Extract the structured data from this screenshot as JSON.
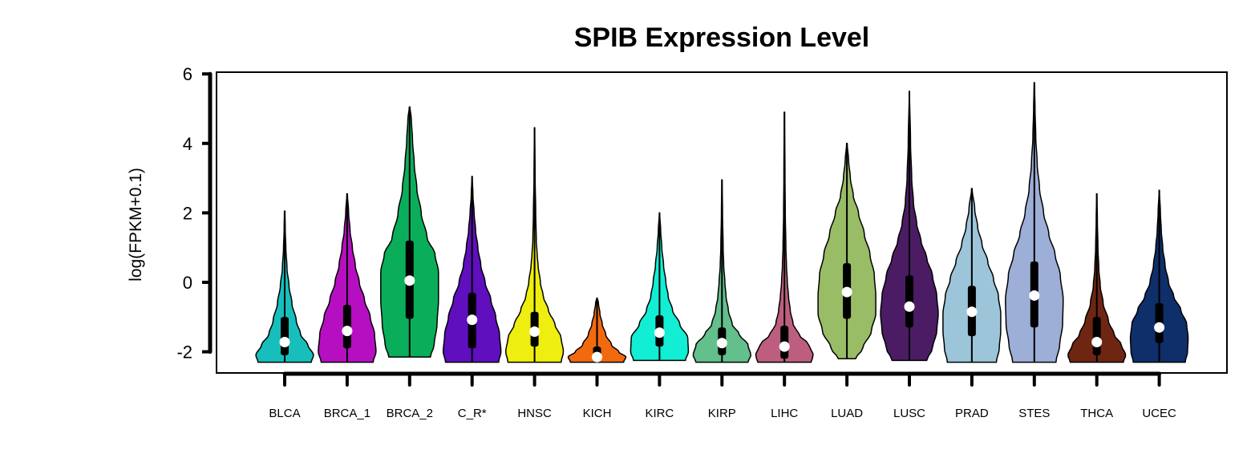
{
  "chart_data": {
    "type": "violin",
    "title": "SPIB Expression Level",
    "ylabel": "log(FPKM+0.1)",
    "xlabel": "",
    "ylim": [
      -2.6,
      6.1
    ],
    "yticks": [
      -2,
      0,
      2,
      4,
      6
    ],
    "ytick_labels": [
      "-2",
      "0",
      "2",
      "4",
      "6"
    ],
    "grid": false,
    "legend": "none",
    "categories": [
      "BLCA",
      "BRCA_1",
      "BRCA_2",
      "C_R*",
      "HNSC",
      "KICH",
      "KIRC",
      "KIRP",
      "LIHC",
      "LUAD",
      "LUSC",
      "PRAD",
      "STES",
      "THCA",
      "UCEC"
    ],
    "series": [
      {
        "category": "BLCA",
        "color": "#17BEBB",
        "min": -2.3,
        "q1": -2.1,
        "median": -1.72,
        "q3": -1.0,
        "max": 2.05,
        "density": [
          [
            -2.3,
            0.92
          ],
          [
            -2.1,
            1.0
          ],
          [
            -1.8,
            0.8
          ],
          [
            -1.5,
            0.55
          ],
          [
            -1.1,
            0.4
          ],
          [
            -0.6,
            0.25
          ],
          [
            -0.1,
            0.15
          ],
          [
            0.4,
            0.08
          ],
          [
            1.0,
            0.04
          ],
          [
            1.5,
            0.02
          ],
          [
            2.05,
            0.01
          ]
        ]
      },
      {
        "category": "BRCA_1",
        "color": "#B60FC1",
        "min": -2.3,
        "q1": -1.9,
        "median": -1.4,
        "q3": -0.65,
        "max": 2.55,
        "density": [
          [
            -2.3,
            0.9
          ],
          [
            -2.0,
            1.0
          ],
          [
            -1.5,
            0.95
          ],
          [
            -1.0,
            0.8
          ],
          [
            -0.5,
            0.6
          ],
          [
            0.0,
            0.42
          ],
          [
            0.5,
            0.28
          ],
          [
            1.0,
            0.18
          ],
          [
            1.5,
            0.1
          ],
          [
            2.0,
            0.05
          ],
          [
            2.55,
            0.01
          ]
        ]
      },
      {
        "category": "BRCA_2",
        "color": "#0AAE5A",
        "min": -2.15,
        "q1": -1.05,
        "median": 0.05,
        "q3": 1.2,
        "max": 5.05,
        "density": [
          [
            -2.15,
            0.72
          ],
          [
            -1.8,
            0.85
          ],
          [
            -1.2,
            0.95
          ],
          [
            -0.5,
            1.0
          ],
          [
            0.3,
            1.0
          ],
          [
            0.8,
            0.88
          ],
          [
            1.3,
            0.6
          ],
          [
            2.0,
            0.4
          ],
          [
            2.7,
            0.25
          ],
          [
            3.4,
            0.16
          ],
          [
            4.1,
            0.1
          ],
          [
            4.7,
            0.06
          ],
          [
            5.05,
            0.01
          ]
        ]
      },
      {
        "category": "C_R*",
        "color": "#5F0FBD",
        "min": -2.3,
        "q1": -1.9,
        "median": -1.08,
        "q3": -0.3,
        "max": 3.05,
        "density": [
          [
            -2.3,
            0.92
          ],
          [
            -2.0,
            1.0
          ],
          [
            -1.5,
            0.95
          ],
          [
            -1.0,
            0.82
          ],
          [
            -0.5,
            0.65
          ],
          [
            0.0,
            0.45
          ],
          [
            0.5,
            0.3
          ],
          [
            1.0,
            0.2
          ],
          [
            1.5,
            0.12
          ],
          [
            2.0,
            0.07
          ],
          [
            2.5,
            0.03
          ],
          [
            3.05,
            0.005
          ]
        ]
      },
      {
        "category": "HNSC",
        "color": "#EEEE10",
        "min": -2.3,
        "q1": -1.85,
        "median": -1.42,
        "q3": -0.85,
        "max": 4.45,
        "density": [
          [
            -2.3,
            0.92
          ],
          [
            -2.0,
            1.0
          ],
          [
            -1.6,
            0.92
          ],
          [
            -1.2,
            0.7
          ],
          [
            -0.8,
            0.48
          ],
          [
            -0.4,
            0.3
          ],
          [
            0.0,
            0.2
          ],
          [
            0.5,
            0.12
          ],
          [
            0.8,
            0.09
          ],
          [
            1.2,
            0.06
          ],
          [
            2.0,
            0.04
          ],
          [
            3.0,
            0.02
          ],
          [
            4.45,
            0.005
          ]
        ]
      },
      {
        "category": "KICH",
        "color": "#F26A0F",
        "min": -2.3,
        "q1": -2.25,
        "median": -2.15,
        "q3": -1.85,
        "max": -0.45,
        "density": [
          [
            -2.3,
            0.92
          ],
          [
            -2.15,
            1.0
          ],
          [
            -2.0,
            0.75
          ],
          [
            -1.8,
            0.5
          ],
          [
            -1.5,
            0.3
          ],
          [
            -1.2,
            0.18
          ],
          [
            -0.9,
            0.1
          ],
          [
            -0.6,
            0.05
          ],
          [
            -0.45,
            0.01
          ]
        ]
      },
      {
        "category": "KIRC",
        "color": "#12EED4",
        "min": -2.25,
        "q1": -1.85,
        "median": -1.45,
        "q3": -0.95,
        "max": 2.0,
        "density": [
          [
            -2.25,
            0.9
          ],
          [
            -2.0,
            1.0
          ],
          [
            -1.6,
            0.98
          ],
          [
            -1.2,
            0.7
          ],
          [
            -0.8,
            0.45
          ],
          [
            -0.4,
            0.3
          ],
          [
            0.0,
            0.22
          ],
          [
            0.5,
            0.14
          ],
          [
            1.0,
            0.08
          ],
          [
            1.5,
            0.04
          ],
          [
            2.0,
            0.005
          ]
        ]
      },
      {
        "category": "KIRP",
        "color": "#63BF8B",
        "min": -2.3,
        "q1": -2.1,
        "median": -1.75,
        "q3": -1.3,
        "max": 2.95,
        "density": [
          [
            -2.3,
            0.9
          ],
          [
            -2.1,
            1.0
          ],
          [
            -1.8,
            0.9
          ],
          [
            -1.5,
            0.6
          ],
          [
            -1.2,
            0.35
          ],
          [
            -0.8,
            0.22
          ],
          [
            -0.4,
            0.14
          ],
          [
            0.0,
            0.1
          ],
          [
            0.5,
            0.06
          ],
          [
            1.0,
            0.04
          ],
          [
            2.0,
            0.02
          ],
          [
            2.95,
            0.005
          ]
        ]
      },
      {
        "category": "LIHC",
        "color": "#BD5E80",
        "min": -2.3,
        "q1": -2.2,
        "median": -1.85,
        "q3": -1.25,
        "max": 4.9,
        "density": [
          [
            -2.3,
            0.92
          ],
          [
            -2.1,
            1.0
          ],
          [
            -1.8,
            0.85
          ],
          [
            -1.5,
            0.5
          ],
          [
            -1.2,
            0.3
          ],
          [
            -0.8,
            0.2
          ],
          [
            -0.4,
            0.14
          ],
          [
            0.0,
            0.1
          ],
          [
            0.5,
            0.07
          ],
          [
            1.0,
            0.05
          ],
          [
            2.0,
            0.03
          ],
          [
            3.0,
            0.02
          ],
          [
            4.9,
            0.005
          ]
        ]
      },
      {
        "category": "LUAD",
        "color": "#99BC66",
        "min": -2.2,
        "q1": -1.05,
        "median": -0.28,
        "q3": 0.55,
        "max": 4.0,
        "density": [
          [
            -2.2,
            0.3
          ],
          [
            -1.9,
            0.55
          ],
          [
            -1.4,
            0.85
          ],
          [
            -0.9,
            1.0
          ],
          [
            -0.4,
            1.0
          ],
          [
            0.2,
            0.95
          ],
          [
            0.8,
            0.8
          ],
          [
            1.4,
            0.6
          ],
          [
            2.0,
            0.4
          ],
          [
            2.5,
            0.22
          ],
          [
            3.0,
            0.12
          ],
          [
            3.5,
            0.06
          ],
          [
            4.0,
            0.01
          ]
        ]
      },
      {
        "category": "LUSC",
        "color": "#4B1C64",
        "min": -2.25,
        "q1": -1.3,
        "median": -0.7,
        "q3": 0.2,
        "max": 5.5,
        "density": [
          [
            -2.25,
            0.6
          ],
          [
            -1.9,
            0.8
          ],
          [
            -1.4,
            0.95
          ],
          [
            -0.9,
            1.0
          ],
          [
            -0.4,
            0.95
          ],
          [
            0.2,
            0.8
          ],
          [
            0.7,
            0.6
          ],
          [
            1.2,
            0.4
          ],
          [
            1.7,
            0.25
          ],
          [
            2.3,
            0.14
          ],
          [
            3.0,
            0.08
          ],
          [
            4.0,
            0.04
          ],
          [
            5.5,
            0.005
          ]
        ]
      },
      {
        "category": "PRAD",
        "color": "#9CC5D9",
        "min": -2.3,
        "q1": -1.55,
        "median": -0.85,
        "q3": -0.1,
        "max": 2.7,
        "density": [
          [
            -2.3,
            0.85
          ],
          [
            -1.9,
            0.95
          ],
          [
            -1.4,
            1.0
          ],
          [
            -0.9,
            1.0
          ],
          [
            -0.4,
            0.92
          ],
          [
            0.1,
            0.75
          ],
          [
            0.6,
            0.55
          ],
          [
            1.1,
            0.35
          ],
          [
            1.6,
            0.2
          ],
          [
            2.1,
            0.1
          ],
          [
            2.7,
            0.01
          ]
        ]
      },
      {
        "category": "STES",
        "color": "#9DAED7",
        "min": -2.3,
        "q1": -1.3,
        "median": -0.38,
        "q3": 0.6,
        "max": 5.75,
        "density": [
          [
            -2.3,
            0.75
          ],
          [
            -1.8,
            0.88
          ],
          [
            -1.2,
            0.98
          ],
          [
            -0.5,
            1.0
          ],
          [
            0.2,
            0.9
          ],
          [
            0.8,
            0.72
          ],
          [
            1.4,
            0.5
          ],
          [
            2.0,
            0.32
          ],
          [
            2.7,
            0.18
          ],
          [
            3.4,
            0.1
          ],
          [
            4.2,
            0.05
          ],
          [
            5.0,
            0.025
          ],
          [
            5.75,
            0.005
          ]
        ]
      },
      {
        "category": "THCA",
        "color": "#6E2612",
        "min": -2.3,
        "q1": -2.1,
        "median": -1.72,
        "q3": -1.0,
        "max": 2.55,
        "density": [
          [
            -2.3,
            0.92
          ],
          [
            -2.1,
            1.0
          ],
          [
            -1.8,
            0.85
          ],
          [
            -1.5,
            0.6
          ],
          [
            -1.1,
            0.4
          ],
          [
            -0.6,
            0.22
          ],
          [
            -0.1,
            0.12
          ],
          [
            0.4,
            0.07
          ],
          [
            1.0,
            0.04
          ],
          [
            1.8,
            0.02
          ],
          [
            2.55,
            0.005
          ]
        ]
      },
      {
        "category": "UCEC",
        "color": "#0E2F6A",
        "min": -2.3,
        "q1": -1.75,
        "median": -1.3,
        "q3": -0.6,
        "max": 2.65,
        "density": [
          [
            -2.3,
            0.9
          ],
          [
            -2.0,
            0.98
          ],
          [
            -1.6,
            1.0
          ],
          [
            -1.2,
            0.95
          ],
          [
            -0.8,
            0.75
          ],
          [
            -0.4,
            0.5
          ],
          [
            0.0,
            0.32
          ],
          [
            0.5,
            0.2
          ],
          [
            1.0,
            0.12
          ],
          [
            1.5,
            0.07
          ],
          [
            2.0,
            0.04
          ],
          [
            2.65,
            0.005
          ]
        ]
      }
    ]
  }
}
